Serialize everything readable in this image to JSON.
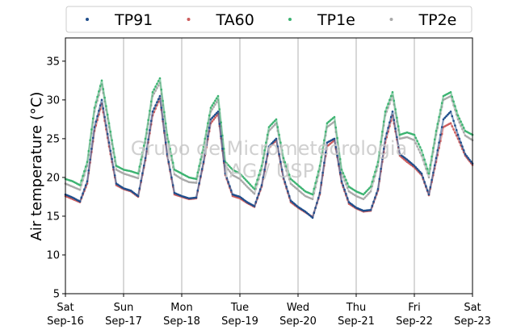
{
  "chart_data": {
    "type": "scatter",
    "title": "",
    "xlabel": "",
    "ylabel": "Air temperature (°C)",
    "ylim": [
      5,
      38
    ],
    "yticks": [
      5,
      10,
      15,
      20,
      25,
      30,
      35
    ],
    "xlim": [
      "2017-09-16",
      "2017-09-23"
    ],
    "xticks": [
      {
        "day": "Sat",
        "date": "Sep-16"
      },
      {
        "day": "Sun",
        "date": "Sep-17"
      },
      {
        "day": "Mon",
        "date": "Sep-18"
      },
      {
        "day": "Tue",
        "date": "Sep-19"
      },
      {
        "day": "Wed",
        "date": "Sep-20"
      },
      {
        "day": "Thu",
        "date": "Sep-21"
      },
      {
        "day": "Fri",
        "date": "Sep-22"
      },
      {
        "day": "Sat",
        "date": "Sep-23"
      }
    ],
    "grid": "vertical",
    "legend": "top",
    "watermark": [
      "Grupo de Micrometeorologia",
      "IAG / USP"
    ],
    "x_time": [
      "2017-09-16 00:00",
      "2017-09-16 03:00",
      "2017-09-16 06:00",
      "2017-09-16 09:00",
      "2017-09-16 12:00",
      "2017-09-16 15:00",
      "2017-09-16 18:00",
      "2017-09-16 21:00",
      "2017-09-17 00:00",
      "2017-09-17 03:00",
      "2017-09-17 06:00",
      "2017-09-17 09:00",
      "2017-09-17 12:00",
      "2017-09-17 15:00",
      "2017-09-17 18:00",
      "2017-09-17 21:00",
      "2017-09-18 00:00",
      "2017-09-18 03:00",
      "2017-09-18 06:00",
      "2017-09-18 09:00",
      "2017-09-18 12:00",
      "2017-09-18 15:00",
      "2017-09-18 18:00",
      "2017-09-18 21:00",
      "2017-09-19 00:00",
      "2017-09-19 03:00",
      "2017-09-19 06:00",
      "2017-09-19 09:00",
      "2017-09-19 12:00",
      "2017-09-19 15:00",
      "2017-09-19 18:00",
      "2017-09-19 21:00",
      "2017-09-20 00:00",
      "2017-09-20 03:00",
      "2017-09-20 06:00",
      "2017-09-20 09:00",
      "2017-09-20 12:00",
      "2017-09-20 15:00",
      "2017-09-20 18:00",
      "2017-09-20 21:00",
      "2017-09-21 00:00",
      "2017-09-21 03:00",
      "2017-09-21 06:00",
      "2017-09-21 09:00",
      "2017-09-21 12:00",
      "2017-09-21 15:00",
      "2017-09-21 18:00",
      "2017-09-21 21:00",
      "2017-09-22 00:00",
      "2017-09-22 03:00",
      "2017-09-22 06:00",
      "2017-09-22 09:00",
      "2017-09-22 12:00",
      "2017-09-22 15:00",
      "2017-09-22 18:00",
      "2017-09-22 21:00",
      "2017-09-23 00:00"
    ],
    "series": [
      {
        "name": "TP91",
        "color": "#1f4e8c",
        "values": [
          17.8,
          17.4,
          16.9,
          19.5,
          26.5,
          30.0,
          24.5,
          19.2,
          18.6,
          18.3,
          17.6,
          22.5,
          28.5,
          30.5,
          23.0,
          18.0,
          17.6,
          17.3,
          17.4,
          22.0,
          27.5,
          28.5,
          20.5,
          17.8,
          17.5,
          16.8,
          16.3,
          19.0,
          24.0,
          25.0,
          20.0,
          17.0,
          16.2,
          15.6,
          14.8,
          18.0,
          24.5,
          25.0,
          19.5,
          16.8,
          16.1,
          15.7,
          15.8,
          18.5,
          25.0,
          28.5,
          23.0,
          22.3,
          21.5,
          20.5,
          17.8,
          22.5,
          27.5,
          28.5,
          25.5,
          23.0,
          21.8
        ]
      },
      {
        "name": "TA60",
        "color": "#cd5c5c",
        "values": [
          17.6,
          17.2,
          16.8,
          19.2,
          26.0,
          29.5,
          24.0,
          19.0,
          18.5,
          18.2,
          17.5,
          22.2,
          28.0,
          30.2,
          22.8,
          17.8,
          17.5,
          17.2,
          17.3,
          21.8,
          27.0,
          28.2,
          20.3,
          17.6,
          17.3,
          16.7,
          16.2,
          18.8,
          23.8,
          24.8,
          19.8,
          16.8,
          16.1,
          15.5,
          14.9,
          17.8,
          24.0,
          24.8,
          19.3,
          16.6,
          16.0,
          15.6,
          15.7,
          18.3,
          24.5,
          28.0,
          22.8,
          22.0,
          21.3,
          20.3,
          17.7,
          22.0,
          26.5,
          27.0,
          25.0,
          22.8,
          21.6
        ]
      },
      {
        "name": "TP1e",
        "color": "#3cb371",
        "values": [
          19.8,
          19.5,
          19.0,
          22.0,
          29.0,
          32.5,
          27.0,
          21.5,
          21.0,
          20.8,
          20.5,
          25.0,
          31.0,
          32.8,
          25.5,
          21.0,
          20.5,
          20.0,
          19.8,
          24.0,
          29.0,
          30.5,
          22.0,
          21.0,
          20.5,
          19.5,
          18.5,
          21.5,
          26.5,
          27.5,
          22.5,
          19.8,
          19.0,
          18.2,
          17.8,
          21.5,
          27.0,
          27.8,
          21.0,
          18.8,
          18.2,
          17.8,
          18.8,
          22.0,
          28.5,
          31.0,
          25.5,
          25.8,
          25.5,
          23.5,
          20.5,
          26.0,
          30.5,
          31.0,
          28.0,
          26.0,
          25.5
        ]
      },
      {
        "name": "TP2e",
        "color": "#a9a9a9",
        "values": [
          19.2,
          18.8,
          18.4,
          21.5,
          28.5,
          32.0,
          26.5,
          21.0,
          20.5,
          20.2,
          19.9,
          24.5,
          30.5,
          32.2,
          25.0,
          20.4,
          19.8,
          19.4,
          19.3,
          23.5,
          28.5,
          30.0,
          21.5,
          20.3,
          19.8,
          18.8,
          17.9,
          21.0,
          26.0,
          27.0,
          22.0,
          19.2,
          18.4,
          17.6,
          17.2,
          21.0,
          26.5,
          27.2,
          20.5,
          18.2,
          17.6,
          17.2,
          18.2,
          21.5,
          28.0,
          30.5,
          25.0,
          25.2,
          24.8,
          22.8,
          20.0,
          25.5,
          30.0,
          30.5,
          27.5,
          25.4,
          24.8
        ]
      }
    ]
  }
}
